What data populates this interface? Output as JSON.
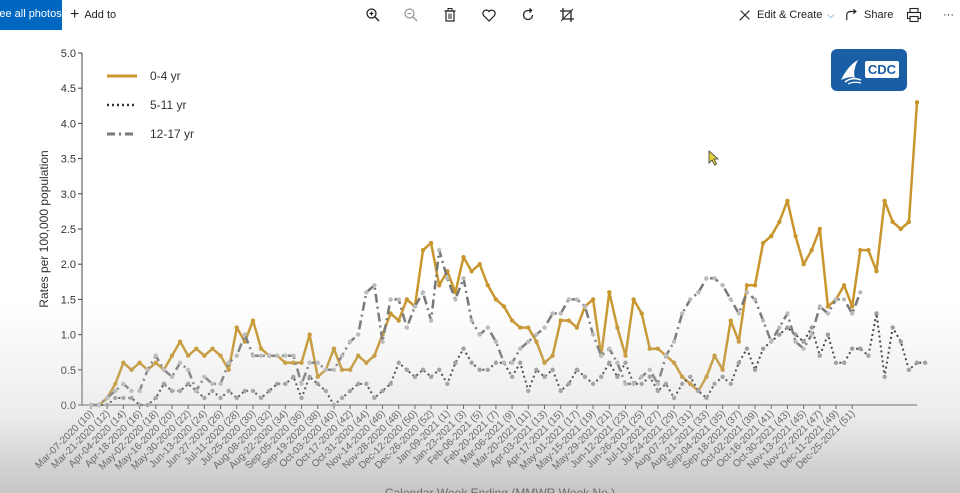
{
  "toolbar": {
    "see_all_label": "See all photos",
    "add_to_label": "Add to",
    "edit_create_label": "Edit & Create",
    "share_label": "Share",
    "more_label": "···"
  },
  "logo": {
    "text": "CDC"
  },
  "colors": {
    "accent": "#0067c0",
    "series_04": "#c8962c",
    "series_511": "#333333",
    "series_1217": "#777777",
    "cdc_blue": "#1a5ea6"
  },
  "chart_data": {
    "type": "line",
    "ylabel": "Rates per 100,000 population",
    "xlabel": "Calendar Week Ending (MMWR Week No.)",
    "ylim": [
      0,
      5
    ],
    "yticks": [
      "0.0",
      "0.5",
      "1.0",
      "1.5",
      "2.0",
      "2.5",
      "3.0",
      "3.5",
      "4.0",
      "4.5",
      "5.0"
    ],
    "legend_position": "top-left",
    "xtick_labels": [
      "Mar-07-2020 (10)",
      "Mar-21-2020 (12)",
      "Apr-04-2020 (14)",
      "Apr-18-2020 (16)",
      "May-02-2020 (18)",
      "May-16-2020 (20)",
      "May-30-2020 (22)",
      "Jun-13-2020 (24)",
      "Jun-27-2020 (26)",
      "Jul-11-2020 (28)",
      "Jul-25-2020 (30)",
      "Aug-08-2020 (32)",
      "Aug-22-2020 (34)",
      "Sep-05-2020 (36)",
      "Sep-19-2020 (38)",
      "Oct-03-2020 (40)",
      "Oct-17-2020 (42)",
      "Oct-31-2020 (44)",
      "Nov-14-2020 (46)",
      "Nov-28-2020 (48)",
      "Dec-12-2020 (50)",
      "Dec-26-2020 (52)",
      "Jan-09-2021 (1)",
      "Jan-23-2021 (3)",
      "Feb-06-2021 (5)",
      "Feb-20-2021 (7)",
      "Mar-06-2021 (9)",
      "Mar-20-2021 (11)",
      "Apr-03-2021 (13)",
      "Apr-17-2021 (15)",
      "May-01-2021 (17)",
      "May-15-2021 (19)",
      "May-29-2021 (21)",
      "Jun-12-2021 (23)",
      "Jun-26-2021 (25)",
      "Jul-10-2021 (27)",
      "Jul-24-2021 (29)",
      "Aug-07-2021 (31)",
      "Aug-21-2021 (33)",
      "Sep-04-2021 (35)",
      "Sep-18-2021 (37)",
      "Oct-02-2021 (39)",
      "Oct-16-2021 (41)",
      "Oct-30-2021 (43)",
      "Nov-13-2021 (45)",
      "Nov-27-2021 (47)",
      "Dec-11-2021 (49)",
      "Dec-25-2021 (51)"
    ],
    "series": [
      {
        "name": "0-4 yr",
        "values": [
          0,
          0,
          0.1,
          0.3,
          0.6,
          0.5,
          0.6,
          0.5,
          0.6,
          0.5,
          0.7,
          0.9,
          0.7,
          0.8,
          0.7,
          0.8,
          0.7,
          0.5,
          1.1,
          0.9,
          1.2,
          0.8,
          0.7,
          0.7,
          0.6,
          0.6,
          0.6,
          1.0,
          0.4,
          0.5,
          0.8,
          0.5,
          0.5,
          0.7,
          0.6,
          0.7,
          1.0,
          1.3,
          1.2,
          1.5,
          1.4,
          2.2,
          2.3,
          1.7,
          1.9,
          1.6,
          2.1,
          1.9,
          2.0,
          1.7,
          1.5,
          1.4,
          1.2,
          1.1,
          1.1,
          0.9,
          0.6,
          0.7,
          1.2,
          1.2,
          1.1,
          1.4,
          1.5,
          0.7,
          1.6,
          1.1,
          0.7,
          1.5,
          1.3,
          0.8,
          0.8,
          0.7,
          0.6,
          0.4,
          0.3,
          0.2,
          0.4,
          0.7,
          0.5,
          1.2,
          0.9,
          1.7,
          1.7,
          2.3,
          2.4,
          2.6,
          2.9,
          2.4,
          2.0,
          2.2,
          2.5,
          1.4,
          1.5,
          1.7,
          1.4,
          2.2,
          2.2,
          1.9,
          2.9,
          2.6,
          2.5,
          2.6,
          4.3
        ]
      },
      {
        "name": "5-11 yr",
        "values": [
          0,
          0,
          0,
          0.1,
          0.1,
          0.1,
          0,
          0,
          0.1,
          0.3,
          0.2,
          0.2,
          0.3,
          0.2,
          0.1,
          0.2,
          0.1,
          0.2,
          0.1,
          0.2,
          0.2,
          0.1,
          0.2,
          0.3,
          0.3,
          0.4,
          0.1,
          0.4,
          0.3,
          0.2,
          0,
          0.1,
          0.2,
          0.3,
          0.3,
          0.1,
          0.2,
          0.3,
          0.6,
          0.5,
          0.4,
          0.5,
          0.4,
          0.5,
          0.3,
          0.6,
          0.8,
          0.6,
          0.5,
          0.5,
          0.6,
          0.6,
          0.4,
          0.6,
          0.2,
          0.5,
          0.4,
          0.5,
          0.2,
          0.3,
          0.5,
          0.4,
          0.3,
          0.4,
          0.6,
          0.4,
          0.6,
          0.3,
          0.3,
          0.4,
          0.2,
          0.3,
          0.1,
          0.3,
          0.4,
          0.2,
          0.1,
          0.3,
          0.4,
          0.3,
          0.6,
          0.8,
          0.5,
          0.8,
          0.9,
          1.0,
          1.1,
          1.0,
          0.9,
          1.1,
          0.7,
          1.0,
          0.6,
          0.6,
          0.8,
          0.8,
          0.7,
          1.3,
          0.4,
          1.1,
          0.9,
          0.5,
          0.6,
          0.6
        ]
      },
      {
        "name": "12-17 yr",
        "values": [
          0,
          0,
          0.1,
          0.2,
          0.3,
          0.2,
          0.2,
          0.5,
          0.7,
          0.5,
          0.4,
          0.6,
          0.5,
          0.2,
          0.4,
          0.3,
          0.3,
          0.6,
          0.7,
          1.0,
          0.7,
          0.7,
          0.7,
          0.7,
          0.7,
          0.7,
          0.3,
          0.6,
          0.6,
          0.5,
          0.5,
          0.7,
          0.9,
          1.0,
          1.6,
          1.7,
          0.9,
          1.5,
          1.5,
          1.1,
          1.4,
          1.6,
          1.2,
          2.2,
          1.8,
          1.5,
          1.8,
          1.2,
          1.0,
          1.1,
          0.9,
          0.6,
          0.6,
          0.8,
          0.9,
          1.0,
          1.1,
          1.3,
          1.3,
          1.5,
          1.5,
          1.4,
          1.0,
          0.7,
          0.8,
          0.6,
          0.3,
          0.3,
          0.4,
          0.5,
          0.3,
          0.7,
          0.9,
          1.3,
          1.5,
          1.6,
          1.8,
          1.8,
          1.7,
          1.5,
          1.3,
          1.6,
          1.5,
          1.2,
          0.9,
          1.1,
          1.3,
          0.9,
          0.8,
          1.0,
          1.4,
          1.3,
          1.5,
          1.5,
          1.3,
          1.6
        ]
      }
    ]
  }
}
